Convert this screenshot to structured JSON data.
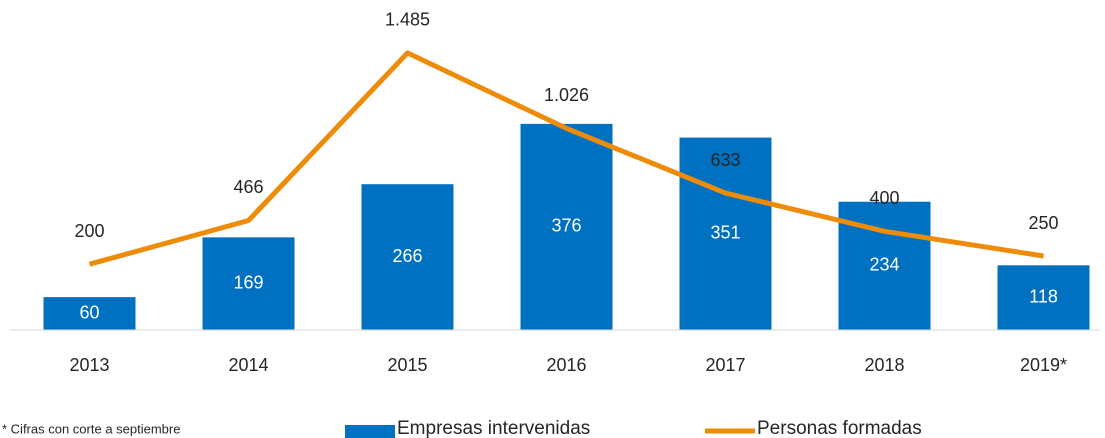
{
  "chart_data": {
    "type": "bar+line",
    "categories": [
      "2013",
      "2014",
      "2015",
      "2016",
      "2017",
      "2018",
      "2019*"
    ],
    "series": [
      {
        "name": "Empresas intervenidas",
        "type": "bar",
        "color": "#0070c0",
        "values": [
          60,
          169,
          266,
          376,
          351,
          234,
          118
        ]
      },
      {
        "name": "Personas formadas",
        "type": "line",
        "axis": "y2",
        "color": "#ee8c0a",
        "values": [
          200,
          466,
          1485,
          1026,
          633,
          400,
          250
        ],
        "value_labels": [
          "200",
          "466",
          "1.485",
          "1.026",
          "633",
          "400",
          "250"
        ]
      }
    ],
    "ylim": [
      0,
      540
    ],
    "y2lim": [
      -200,
      1600
    ],
    "legend": "bottom",
    "footnote": "* Cifras con corte a septiembre"
  }
}
